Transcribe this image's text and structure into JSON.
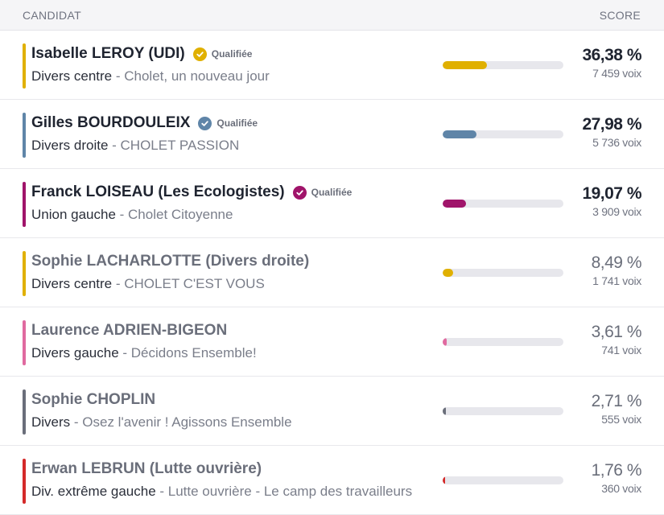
{
  "header": {
    "candidate_label": "CANDIDAT",
    "score_label": "SCORE"
  },
  "candidates": [
    {
      "name": "Isabelle LEROY (UDI)",
      "qualified": "Qualifiée",
      "nuance": "Divers centre",
      "separator": " - ",
      "list": "Cholet, un nouveau jour",
      "pct": "36,38 %",
      "votes": "7 459 voix",
      "percent_value": 36.38,
      "color": "#e0b000"
    },
    {
      "name": "Gilles BOURDOULEIX",
      "qualified": "Qualifiée",
      "nuance": "Divers droite",
      "separator": " - ",
      "list": "CHOLET PASSION",
      "pct": "27,98 %",
      "votes": "5 736 voix",
      "percent_value": 27.98,
      "color": "#5f85a8"
    },
    {
      "name": "Franck LOISEAU (Les Ecologistes)",
      "qualified": "Qualifiée",
      "nuance": "Union gauche",
      "separator": " - ",
      "list": "Cholet Citoyenne",
      "pct": "19,07 %",
      "votes": "3 909 voix",
      "percent_value": 19.07,
      "color": "#a0146a"
    },
    {
      "name": "Sophie LACHARLOTTE (Divers droite)",
      "qualified": "",
      "nuance": "Divers centre",
      "separator": " - ",
      "list": "CHOLET C'EST VOUS",
      "pct": "8,49 %",
      "votes": "1 741 voix",
      "percent_value": 8.49,
      "color": "#e0b000"
    },
    {
      "name": "Laurence ADRIEN-BIGEON",
      "qualified": "",
      "nuance": "Divers gauche",
      "separator": " - ",
      "list": "Décidons Ensemble!",
      "pct": "3,61 %",
      "votes": "741 voix",
      "percent_value": 3.61,
      "color": "#e06aa0"
    },
    {
      "name": "Sophie CHOPLIN",
      "qualified": "",
      "nuance": "Divers",
      "separator": " - ",
      "list": "Osez l'avenir ! Agissons Ensemble",
      "pct": "2,71 %",
      "votes": "555 voix",
      "percent_value": 2.71,
      "color": "#6a6e7a"
    },
    {
      "name": "Erwan LEBRUN (Lutte ouvrière)",
      "qualified": "",
      "nuance": "Div. extrême gauche",
      "separator": " - ",
      "list": "Lutte ouvrière - Le camp des travailleurs",
      "pct": "1,76 %",
      "votes": "360 voix",
      "percent_value": 1.76,
      "color": "#d42a2a"
    }
  ]
}
